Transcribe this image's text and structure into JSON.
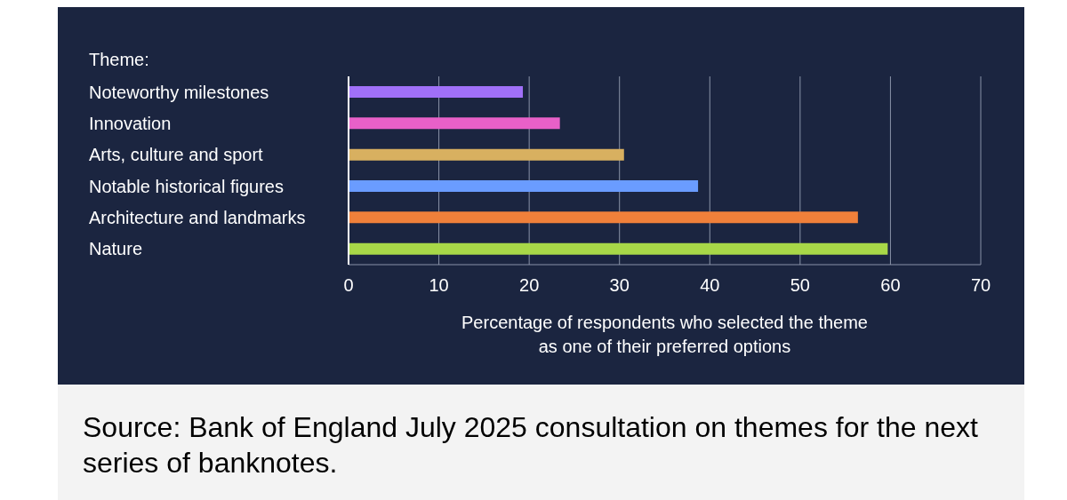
{
  "chart_data": {
    "type": "bar",
    "orientation": "horizontal",
    "ylabel": "Theme:",
    "xlabel": "Percentage of respondents who selected the theme as one of their preferred options",
    "categories": [
      "Noteworthy milestones",
      "Innovation",
      "Arts, culture and sport",
      "Notable historical figures",
      "Architecture and landmarks",
      "Nature"
    ],
    "values": [
      19.3,
      23.4,
      30.5,
      38.7,
      56.4,
      59.7
    ],
    "colors": [
      "#a070f8",
      "#e860c8",
      "#d8b060",
      "#6a9cff",
      "#f0803a",
      "#a8d848"
    ],
    "xlim": [
      0,
      70
    ],
    "xticks": [
      0,
      10,
      20,
      30,
      40,
      50,
      60,
      70
    ],
    "grid": "x",
    "annotations": [
      "Source: Bank of England July 2025 consultation on themes for the next series of banknotes."
    ]
  }
}
